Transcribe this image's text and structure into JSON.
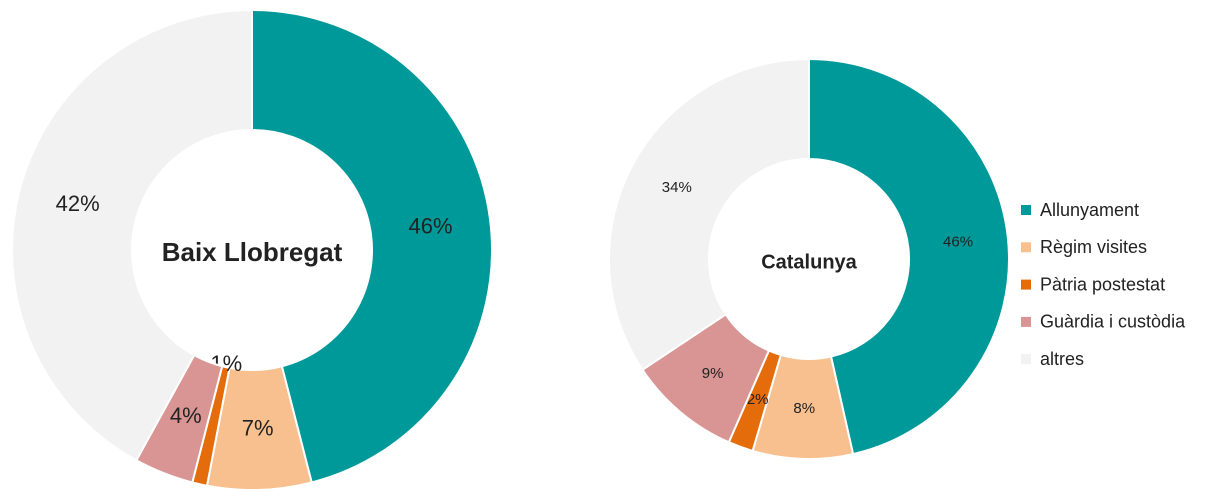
{
  "chart_data": [
    {
      "type": "pie",
      "title": "Baix Llobregat",
      "donut": true,
      "values": [
        46,
        7,
        1,
        4,
        42
      ],
      "value_labels": [
        "46%",
        "7%",
        "1%",
        "4%",
        "42%"
      ]
    },
    {
      "type": "pie",
      "title": "Catalunya",
      "donut": true,
      "values": [
        46,
        8,
        2,
        9,
        34
      ],
      "value_labels": [
        "46%",
        "8%",
        "2%",
        "9%",
        "34%"
      ]
    }
  ],
  "legend": {
    "labels": [
      "Allunyament",
      "Règim visites",
      "Pàtria postestat",
      "Guàrdia i custòdia",
      "altres"
    ],
    "colors": [
      "#009999",
      "#f8c08f",
      "#e46c0a",
      "#d99594",
      "#f2f2f2"
    ]
  }
}
